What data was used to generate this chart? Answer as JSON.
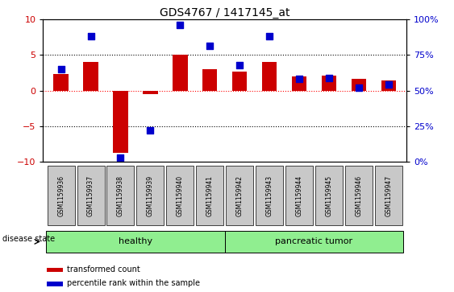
{
  "title": "GDS4767 / 1417145_at",
  "samples": [
    "GSM1159936",
    "GSM1159937",
    "GSM1159938",
    "GSM1159939",
    "GSM1159940",
    "GSM1159941",
    "GSM1159942",
    "GSM1159943",
    "GSM1159944",
    "GSM1159945",
    "GSM1159946",
    "GSM1159947"
  ],
  "transformed_count": [
    2.3,
    4.0,
    -8.7,
    -0.5,
    5.0,
    3.0,
    2.6,
    4.0,
    2.0,
    2.1,
    1.6,
    1.4
  ],
  "percentile_rank_pct": [
    65,
    88,
    3,
    22,
    96,
    81,
    68,
    88,
    58,
    59,
    52,
    54
  ],
  "group_colors": [
    "#90ee90",
    "#90ee90"
  ],
  "left_ylim": [
    -10,
    10
  ],
  "right_ylim": [
    0,
    100
  ],
  "left_yticks": [
    -10,
    -5,
    0,
    5,
    10
  ],
  "right_yticks": [
    0,
    25,
    50,
    75,
    100
  ],
  "bar_color": "#cc0000",
  "dot_color": "#0000cc",
  "bar_width": 0.5,
  "dot_size": 30,
  "legend_labels": [
    "transformed count",
    "percentile rank within the sample"
  ],
  "disease_state_label": "disease state",
  "figure_bg": "#ffffff",
  "axes_bg": "#ffffff",
  "tick_label_bg": "#c8c8c8",
  "title_fontsize": 10,
  "ylabel_left_color": "#cc0000",
  "ylabel_right_color": "#0000cc",
  "healthy_label": "healthy",
  "tumor_label": "pancreatic tumor"
}
